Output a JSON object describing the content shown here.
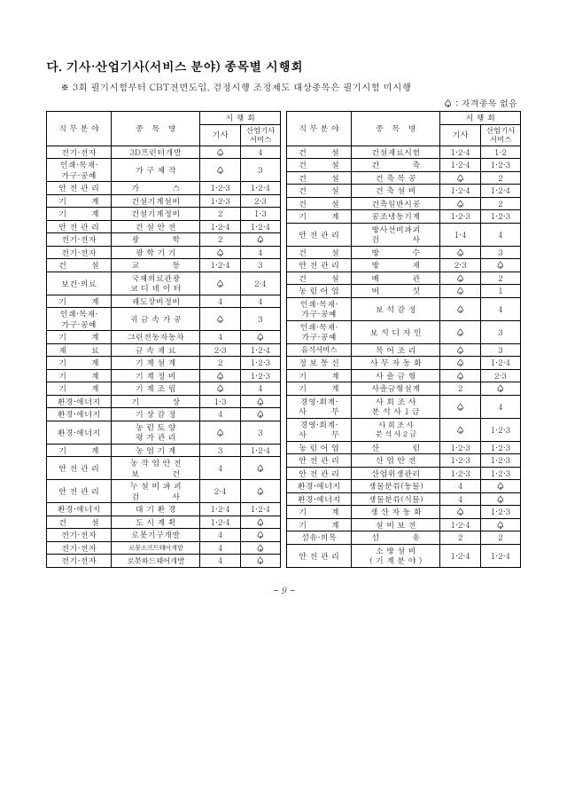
{
  "title": "다. 기사·산업기사(서비스 분야) 종목별 시행회",
  "subtitle": "※ 3회 필기시험부터 CBT전면도입, 검정시행 조정제도 대상종목은 필기시험 미시행",
  "note": "♤ : 자격종목 없음",
  "page_number": "- 9 -",
  "headers": {
    "field": "직 무 분 야",
    "name": "종　목　명",
    "group": "시 행 회",
    "col1": "기사",
    "col2": "산업기사\n서비스"
  },
  "left": [
    {
      "f": "전기·전자",
      "n": "3D프린터개발",
      "a": "♤",
      "b": "4"
    },
    {
      "f": "인쇄·목재·\n가구·공예",
      "n": "가 구 제 작",
      "a": "♤",
      "b": "3"
    },
    {
      "f": "안 전 관 리",
      "n": "가　　　　스",
      "a": "1·2·3",
      "b": "1·2·4"
    },
    {
      "f": "기　　　계",
      "n": "건설기계설비",
      "a": "1·2·3",
      "b": "2·3"
    },
    {
      "f": "기　　　계",
      "n": "건설기계정비",
      "a": "2",
      "b": "1·3"
    },
    {
      "f": "안 전 관 리",
      "n": "건 설 안 전",
      "a": "1·2·4",
      "b": "1·2·4"
    },
    {
      "f": "전기·전자",
      "n": "광　　　　학",
      "a": "2",
      "b": "♤"
    },
    {
      "f": "전기·전자",
      "n": "광 학 기 기",
      "a": "♤",
      "b": "4"
    },
    {
      "f": "건　　　설",
      "n": "교　　　　통",
      "a": "1·2·4",
      "b": "3"
    },
    {
      "f": "보건·의료",
      "n": "국제의료관광\n코 디 네 이 터",
      "a": "♤",
      "b": "2·4"
    },
    {
      "f": "기　　　계",
      "n": "궤도장비정비",
      "a": "4",
      "b": "4"
    },
    {
      "f": "인쇄·목재·\n가구·공예",
      "n": "귀 금 속 가 공",
      "a": "♤",
      "b": "3"
    },
    {
      "f": "기　　　계",
      "n": "그린전동자동차",
      "a": "4",
      "b": "♤"
    },
    {
      "f": "재　　　료",
      "n": "금 속 재 료",
      "a": "2·3",
      "b": "1·2·4"
    },
    {
      "f": "기　　　계",
      "n": "기 계 설 계",
      "a": "2",
      "b": "1·2·3"
    },
    {
      "f": "기　　　계",
      "n": "기 계 정 비",
      "a": "♤",
      "b": "1·2·3"
    },
    {
      "f": "기　　　계",
      "n": "기 계 조 립",
      "a": "♤",
      "b": "4"
    },
    {
      "f": "환경·에너지",
      "n": "기　　　　상",
      "a": "1·3",
      "b": "♤"
    },
    {
      "f": "환경·에너지",
      "n": "기 상 감 정",
      "a": "4",
      "b": "♤"
    },
    {
      "f": "환경·에너지",
      "n": "농 림 토 양\n평 가 관 리",
      "a": "♤",
      "b": "3"
    },
    {
      "f": "기　　　계",
      "n": "농 업 기 계",
      "a": "3",
      "b": "1·2·4"
    },
    {
      "f": "안 전 관 리",
      "n": "농 작 업 안 전\n보　　　　건",
      "a": "4",
      "b": "♤"
    },
    {
      "f": "안 전 관 리",
      "n": "누 설 비 파 괴\n검　　　　사",
      "a": "2·4",
      "b": "♤"
    },
    {
      "f": "환경·에너지",
      "n": "대 기 환 경",
      "a": "1·2·4",
      "b": "1·2·4"
    },
    {
      "f": "건　　　설",
      "n": "도 시 계 획",
      "a": "1·2·4",
      "b": "♤"
    },
    {
      "f": "전기·전자",
      "n": "로봇기구개발",
      "a": "4",
      "b": "♤"
    },
    {
      "f": "전기·전자",
      "n": "로봇소프트웨어개발",
      "a": "4",
      "b": "♤",
      "ncls": "xtight"
    },
    {
      "f": "전기·전자",
      "n": "로봇하드웨어개발",
      "a": "4",
      "b": "♤",
      "ncls": "tight"
    }
  ],
  "right": [
    {
      "f": "건　　　설",
      "n": "건설재료시험",
      "a": "1·2·4",
      "b": "1·2"
    },
    {
      "f": "건　　　설",
      "n": "건　　　　축",
      "a": "1·2·4",
      "b": "1·2·3"
    },
    {
      "f": "건　　　설",
      "n": "건 축 목 공",
      "a": "♤",
      "b": "2"
    },
    {
      "f": "건　　　설",
      "n": "건 축 설 비",
      "a": "1·2·4",
      "b": "1·2·4"
    },
    {
      "f": "건　　　설",
      "n": "건축일반시공",
      "a": "♤",
      "b": "2"
    },
    {
      "f": "기　　　계",
      "n": "공조냉동기계",
      "a": "1·2·3",
      "b": "1·2·3"
    },
    {
      "f": "안 전 관 리",
      "n": "방사선비파괴\n검　　　　사",
      "a": "1·4",
      "b": "4"
    },
    {
      "f": "건　　　설",
      "n": "방　　　　수",
      "a": "♤",
      "b": "3"
    },
    {
      "f": "안 전 관 리",
      "n": "방　　　　재",
      "a": "2·3",
      "b": "♤"
    },
    {
      "f": "건　　　설",
      "n": "배　　　　관",
      "a": "♤",
      "b": "2"
    },
    {
      "f": "농 림 어 업",
      "n": "버　　　　섯",
      "a": "♤",
      "b": "1"
    },
    {
      "f": "인쇄·목재·\n가구·공예",
      "n": "보 석 감 정",
      "a": "♤",
      "b": "4"
    },
    {
      "f": "인쇄·목재·\n가구·공예",
      "n": "보 석 디 자 인",
      "a": "♤",
      "b": "3"
    },
    {
      "f": "음식서비스",
      "n": "복 어 조 리",
      "a": "♤",
      "b": "3",
      "fcls": "tight"
    },
    {
      "f": "정 보 통 신",
      "n": "사 무 자 동 화",
      "a": "♤",
      "b": "1·2·4"
    },
    {
      "f": "기　　　계",
      "n": "사 출 금 형",
      "a": "♤",
      "b": "2·3"
    },
    {
      "f": "기　　　계",
      "n": "사출금형설계",
      "a": "2",
      "b": "♤"
    },
    {
      "f": "경영·회계·\n사　　　무",
      "n": "사 회 조 사\n분 석 사 1 급",
      "a": "♤",
      "b": "4"
    },
    {
      "f": "경영·회계·\n사　　　무",
      "n": "사 회 조 사\n분 석 사 2 급",
      "a": "♤",
      "b": "1·2·3",
      "ncls": "tight"
    },
    {
      "f": "농 림 어 업",
      "n": "산　　　　림",
      "a": "1·2·3",
      "b": "1·2·3"
    },
    {
      "f": "안 전 관 리",
      "n": "산 업 안 전",
      "a": "1·2·3",
      "b": "1·2·3"
    },
    {
      "f": "안 전 관 리",
      "n": "산업위생관리",
      "a": "1·2·3",
      "b": "1·2·3"
    },
    {
      "f": "환경·에너지",
      "n": "생물분류(동물)",
      "a": "4",
      "b": "♤"
    },
    {
      "f": "환경·에너지",
      "n": "생물분류(식물)",
      "a": "4",
      "b": "♤"
    },
    {
      "f": "기　　　계",
      "n": "생 산 자 동 화",
      "a": "♤",
      "b": "1·2·3"
    },
    {
      "f": "기　　　계",
      "n": "설 비 보 전",
      "a": "1·2·4",
      "b": "♤"
    },
    {
      "f": "섬유·의복",
      "n": "섬　　　　유",
      "a": "2",
      "b": "2"
    },
    {
      "f": "안 전 관 리",
      "n": "소 방 설 비\n( 기 계 분 야 )",
      "a": "1·2·4",
      "b": "1·2·4"
    }
  ]
}
